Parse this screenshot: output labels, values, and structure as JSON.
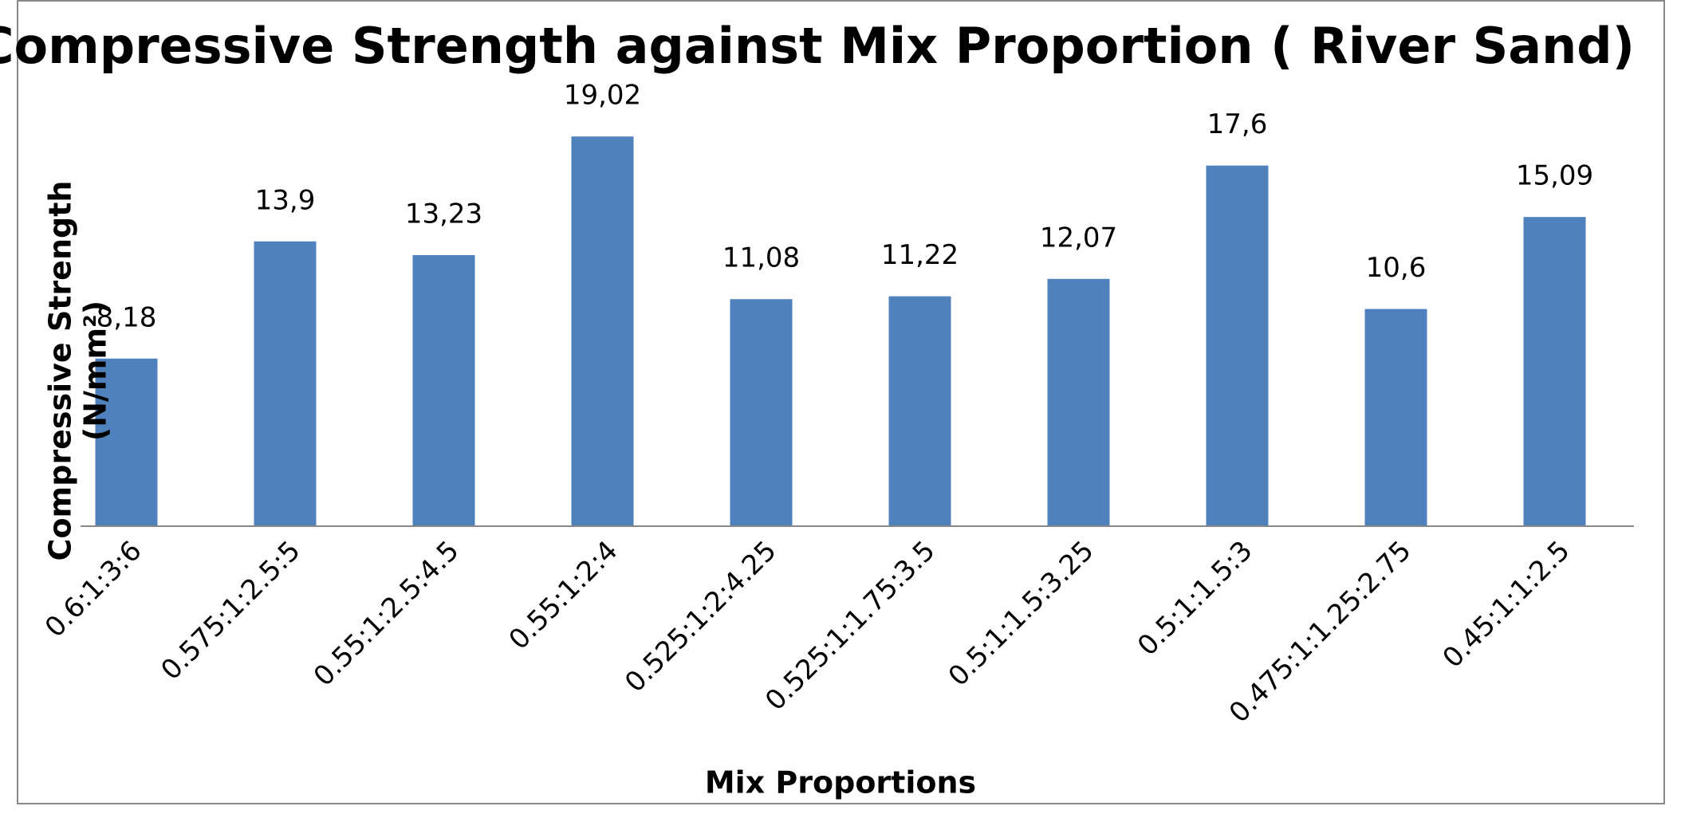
{
  "chart_data": {
    "type": "bar",
    "title": "Compressive Strength against Mix Proportion ( River Sand)",
    "x_label": "Mix Proportions",
    "y_label": "Compressive Strength (N/mm²)",
    "categories": [
      "0.6:1:3:6",
      "0.575:1:2.5:5",
      "0.55:1:2.5:4.5",
      "0.55:1:2:4",
      "0.525:1:2:4.25",
      "0.525:1:1.75:3.5",
      "0.5:1:1.5:3.25",
      "0.5:1:1.5:3",
      "0.475:1:1.25:2.75",
      "0.45:1:1:2.5"
    ],
    "values": [
      8.18,
      13.9,
      13.23,
      19.02,
      11.08,
      11.22,
      12.07,
      17.6,
      10.6,
      15.09
    ],
    "value_labels": [
      "8,18",
      "13,9",
      "13,23",
      "19,02",
      "11,08",
      "11,22",
      "12,07",
      "17,6",
      "10,6",
      "15,09"
    ],
    "color": "#4f81bd",
    "ylim": [
      0,
      20
    ]
  }
}
